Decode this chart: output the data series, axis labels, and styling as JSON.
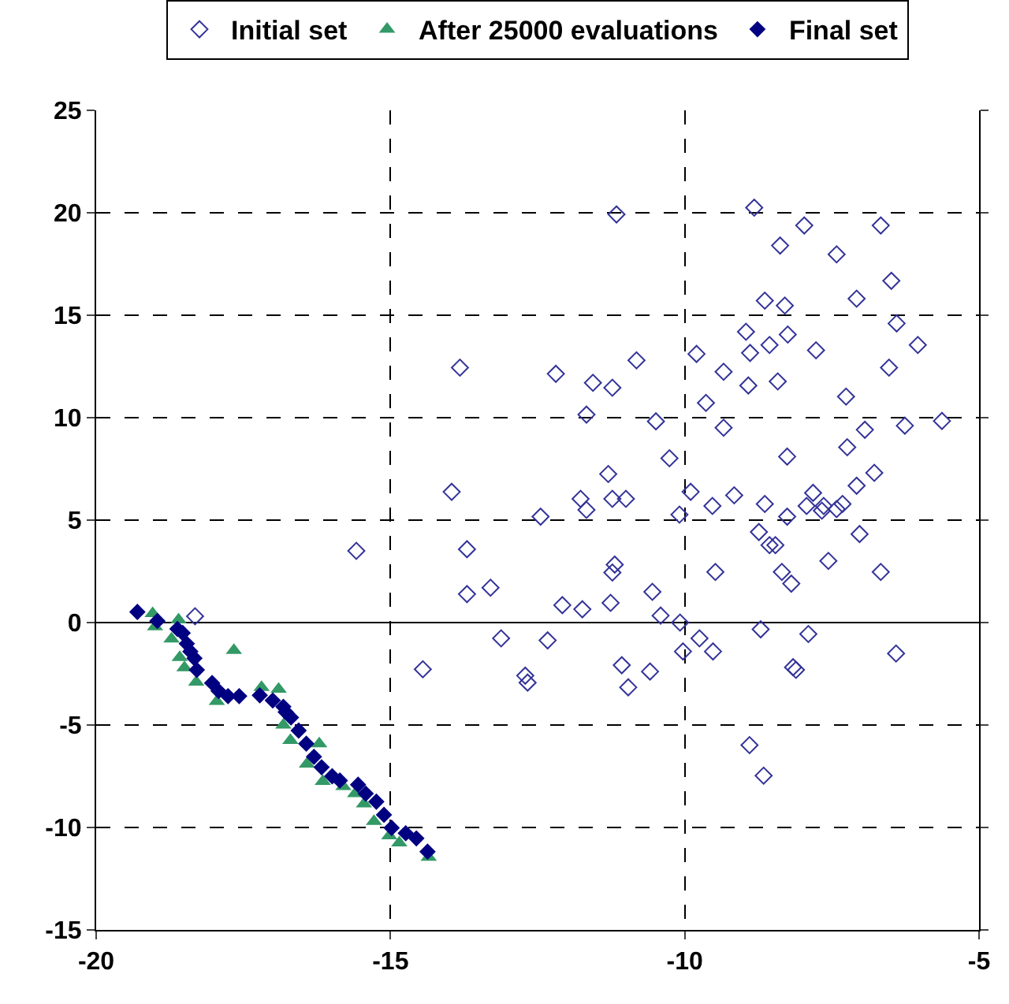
{
  "chart_data": {
    "type": "scatter",
    "xlim": [
      -20,
      -5
    ],
    "ylim": [
      -15,
      25
    ],
    "xticks": [
      -20,
      -15,
      -10,
      -5
    ],
    "yticks": [
      -15,
      -10,
      -5,
      0,
      5,
      10,
      15,
      20,
      25
    ],
    "grid": true,
    "legend": "top",
    "series": [
      {
        "name": "Initial set",
        "color": "#333399",
        "marker": "diamond-open",
        "x": [
          -11.16,
          -13.82,
          -12.19,
          -11.56,
          -11.23,
          -10.82,
          -9.8,
          -11.67,
          -10.49,
          -10.26,
          -11.3,
          -13.96,
          -11.77,
          -11.23,
          -11.0,
          -11.67,
          -12.45,
          -10.09,
          -9.9,
          -13.7,
          -11.19,
          -11.23,
          -13.7,
          -13.3,
          -12.08,
          -11.74,
          -11.26,
          -10.55,
          -10.41,
          -10.08,
          -9.75,
          -13.12,
          -12.33,
          -10.03,
          -14.45,
          -11.07,
          -10.59,
          -12.71,
          -12.67,
          -10.96,
          -15.58,
          -18.32,
          -8.82,
          -7.97,
          -6.67,
          -8.38,
          -7.42,
          -6.49,
          -8.64,
          -8.3,
          -7.08,
          -6.4,
          -6.04,
          -8.96,
          -8.56,
          -8.25,
          -8.89,
          -7.77,
          -9.34,
          -8.92,
          -8.42,
          -6.53,
          -9.64,
          -7.26,
          -9.34,
          -6.94,
          -6.26,
          -5.63,
          -7.24,
          -8.26,
          -6.78,
          -7.08,
          -9.53,
          -9.16,
          -8.64,
          -8.26,
          -7.93,
          -7.82,
          -7.64,
          -7.67,
          -7.42,
          -7.32,
          -8.74,
          -8.56,
          -8.46,
          -7.03,
          -7.56,
          -9.48,
          -8.35,
          -8.19,
          -6.67,
          -8.71,
          -7.9,
          -9.52,
          -6.41,
          -8.16,
          -8.11,
          -8.9,
          -8.66
        ],
        "values": [
          19.92,
          12.44,
          12.14,
          11.7,
          11.46,
          12.8,
          13.11,
          10.15,
          9.82,
          8.02,
          7.25,
          6.38,
          6.04,
          6.04,
          6.04,
          5.5,
          5.17,
          5.27,
          6.38,
          3.58,
          2.83,
          2.44,
          1.39,
          1.7,
          0.85,
          0.65,
          0.96,
          1.5,
          0.34,
          0.0,
          -0.77,
          -0.77,
          -0.87,
          -1.41,
          -2.28,
          -2.08,
          -2.39,
          -2.59,
          -2.93,
          -3.16,
          3.5,
          0.31,
          20.25,
          19.38,
          19.38,
          18.4,
          17.97,
          16.68,
          15.71,
          15.47,
          15.81,
          14.6,
          13.55,
          14.19,
          13.55,
          14.06,
          13.16,
          13.29,
          12.24,
          11.57,
          11.77,
          12.44,
          10.72,
          11.03,
          9.51,
          9.41,
          9.61,
          9.84,
          8.56,
          8.1,
          7.31,
          6.68,
          5.69,
          6.21,
          5.79,
          5.17,
          5.69,
          6.33,
          5.69,
          5.46,
          5.54,
          5.79,
          4.42,
          3.78,
          3.78,
          4.32,
          3.01,
          2.47,
          2.47,
          1.9,
          2.47,
          -0.33,
          -0.56,
          -1.41,
          -1.51,
          -2.18,
          -2.31,
          -5.98,
          -7.47
        ]
      },
      {
        "name": "After 25000 evaluations",
        "color": "#339966",
        "marker": "triangle",
        "x": [
          -19.04,
          -19.0,
          -18.6,
          -18.72,
          -18.58,
          -18.5,
          -18.3,
          -17.95,
          -17.66,
          -17.19,
          -16.9,
          -16.82,
          -16.7,
          -16.21,
          -16.42,
          -16.15,
          -15.8,
          -15.6,
          -15.45,
          -15.28,
          -15.02,
          -14.85,
          -14.35
        ],
        "values": [
          0.44,
          -0.2,
          0.13,
          -0.8,
          -1.7,
          -2.2,
          -2.9,
          -3.85,
          -1.36,
          -3.16,
          -3.25,
          -5.0,
          -5.75,
          -5.91,
          -6.9,
          -7.75,
          -8.0,
          -8.35,
          -8.85,
          -9.7,
          -10.4,
          -10.75,
          -11.45
        ]
      },
      {
        "name": "Final set",
        "color": "#000080",
        "marker": "diamond",
        "x": [
          -19.3,
          -18.96,
          -18.62,
          -18.53,
          -18.46,
          -18.4,
          -18.33,
          -18.29,
          -18.03,
          -17.92,
          -17.76,
          -17.57,
          -17.22,
          -17.0,
          -16.82,
          -16.78,
          -16.69,
          -16.56,
          -16.43,
          -16.3,
          -16.17,
          -15.99,
          -15.86,
          -15.55,
          -15.42,
          -15.24,
          -15.11,
          -14.98,
          -14.74,
          -14.56,
          -14.37
        ],
        "values": [
          0.52,
          0.08,
          -0.31,
          -0.51,
          -1.03,
          -1.41,
          -1.74,
          -2.31,
          -2.95,
          -3.34,
          -3.59,
          -3.59,
          -3.55,
          -3.8,
          -4.11,
          -4.37,
          -4.63,
          -5.27,
          -5.91,
          -6.55,
          -7.06,
          -7.5,
          -7.71,
          -7.91,
          -8.35,
          -8.74,
          -9.38,
          -10.02,
          -10.28,
          -10.53,
          -11.18
        ]
      }
    ]
  }
}
